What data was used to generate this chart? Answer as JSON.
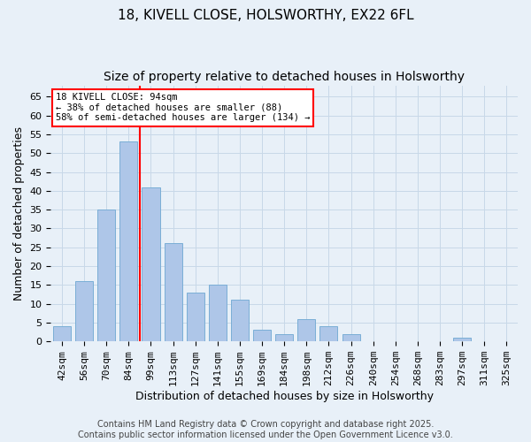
{
  "title1": "18, KIVELL CLOSE, HOLSWORTHY, EX22 6FL",
  "title2": "Size of property relative to detached houses in Holsworthy",
  "xlabel": "Distribution of detached houses by size in Holsworthy",
  "ylabel": "Number of detached properties",
  "bar_labels": [
    "42sqm",
    "56sqm",
    "70sqm",
    "84sqm",
    "99sqm",
    "113sqm",
    "127sqm",
    "141sqm",
    "155sqm",
    "169sqm",
    "184sqm",
    "198sqm",
    "212sqm",
    "226sqm",
    "240sqm",
    "254sqm",
    "268sqm",
    "283sqm",
    "297sqm",
    "311sqm",
    "325sqm"
  ],
  "bar_values": [
    4,
    16,
    35,
    53,
    41,
    26,
    13,
    15,
    11,
    3,
    2,
    6,
    4,
    2,
    0,
    0,
    0,
    0,
    1,
    0,
    0
  ],
  "bar_color": "#aec6e8",
  "bar_edge_color": "#7aaed6",
  "bar_width": 0.8,
  "vline_x": 3.5,
  "vline_color": "red",
  "vline_lw": 1.5,
  "annotation_title": "18 KIVELL CLOSE: 94sqm",
  "annotation_line1": "← 38% of detached houses are smaller (88)",
  "annotation_line2": "58% of semi-detached houses are larger (134) →",
  "annotation_box_color": "#ffffff",
  "annotation_box_edge": "red",
  "ylim": [
    0,
    68
  ],
  "yticks": [
    0,
    5,
    10,
    15,
    20,
    25,
    30,
    35,
    40,
    45,
    50,
    55,
    60,
    65
  ],
  "grid_color": "#c8d8e8",
  "bg_color": "#e8f0f8",
  "footer1": "Contains HM Land Registry data © Crown copyright and database right 2025.",
  "footer2": "Contains public sector information licensed under the Open Government Licence v3.0.",
  "title_fontsize": 11,
  "subtitle_fontsize": 10,
  "axis_fontsize": 9,
  "tick_fontsize": 8,
  "footer_fontsize": 7
}
